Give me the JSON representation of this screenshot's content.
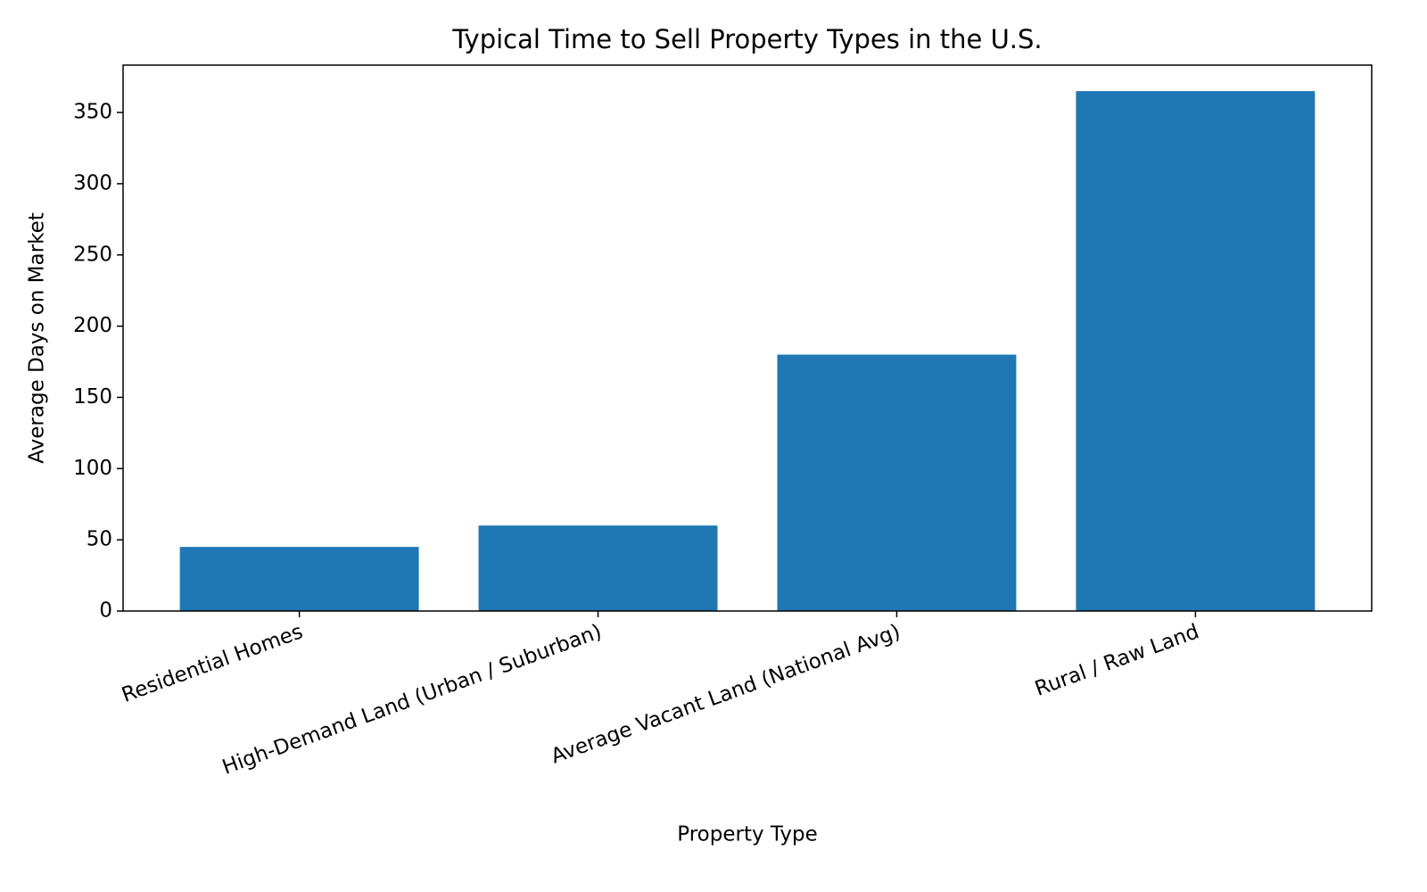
{
  "chart_data": {
    "type": "bar",
    "title": "Typical Time to Sell Property Types in the U.S.",
    "x_label": "Property Type",
    "y_label": "Average Days on Market",
    "categories": [
      "Residential Homes",
      "High-Demand Land (Urban / Suburban)",
      "Average Vacant Land (National Avg)",
      "Rural / Raw Land"
    ],
    "values": [
      45,
      60,
      180,
      365
    ],
    "color": "#1f77b4",
    "ylim": [
      0,
      383.25
    ],
    "yticks": [
      0,
      50,
      100,
      150,
      200,
      250,
      300,
      350
    ],
    "grid": false
  }
}
